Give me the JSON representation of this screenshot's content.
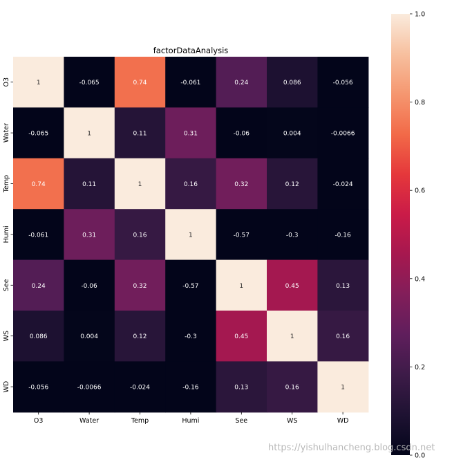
{
  "chart_data": {
    "type": "heatmap",
    "title": "factorDataAnalysis",
    "x_labels": [
      "O3",
      "Water",
      "Temp",
      "Humi",
      "See",
      "WS",
      "WD"
    ],
    "y_labels": [
      "O3",
      "Water",
      "Temp",
      "Humi",
      "See",
      "WS",
      "WD"
    ],
    "values": [
      [
        1,
        -0.065,
        0.74,
        -0.061,
        0.24,
        0.086,
        -0.056
      ],
      [
        -0.065,
        1,
        0.11,
        0.31,
        -0.06,
        0.004,
        -0.0066
      ],
      [
        0.74,
        0.11,
        1,
        0.16,
        0.32,
        0.12,
        -0.024
      ],
      [
        -0.061,
        0.31,
        0.16,
        1,
        -0.57,
        -0.3,
        -0.16
      ],
      [
        0.24,
        -0.06,
        0.32,
        -0.57,
        1,
        0.45,
        0.13
      ],
      [
        0.086,
        0.004,
        0.12,
        -0.3,
        0.45,
        1,
        0.16
      ],
      [
        -0.056,
        -0.0066,
        -0.024,
        -0.16,
        0.13,
        0.16,
        1
      ]
    ],
    "annotations": [
      [
        "1",
        "-0.065",
        "0.74",
        "-0.061",
        "0.24",
        "0.086",
        "-0.056"
      ],
      [
        "-0.065",
        "1",
        "0.11",
        "0.31",
        "-0.06",
        "0.004",
        "-0.0066"
      ],
      [
        "0.74",
        "0.11",
        "1",
        "0.16",
        "0.32",
        "0.12",
        "-0.024"
      ],
      [
        "-0.061",
        "0.31",
        "0.16",
        "1",
        "-0.57",
        "-0.3",
        "-0.16"
      ],
      [
        "0.24",
        "-0.06",
        "0.32",
        "-0.57",
        "1",
        "0.45",
        "0.13"
      ],
      [
        "0.086",
        "0.004",
        "0.12",
        "-0.3",
        "0.45",
        "1",
        "0.16"
      ],
      [
        "-0.056",
        "-0.0066",
        "-0.024",
        "-0.16",
        "0.13",
        "0.16",
        "1"
      ]
    ],
    "colorbar": {
      "vmin": 0.0,
      "vmax": 1.0,
      "ticks": [
        0.0,
        0.2,
        0.4,
        0.6,
        0.8,
        1.0
      ],
      "tick_labels": [
        "0.0",
        "0.2",
        "0.4",
        "0.6",
        "0.8",
        "1.0"
      ]
    },
    "colormap": "rocket",
    "colormap_stops": [
      "#03051a",
      "#1e1232",
      "#3d1b48",
      "#5f1e5c",
      "#821e5a",
      "#a6184f",
      "#ca1b48",
      "#e5383b",
      "#f26a48",
      "#f59770",
      "#f7c09f",
      "#faebdd"
    ]
  },
  "watermark": "https://yishulhancheng.blog.csdn.net"
}
